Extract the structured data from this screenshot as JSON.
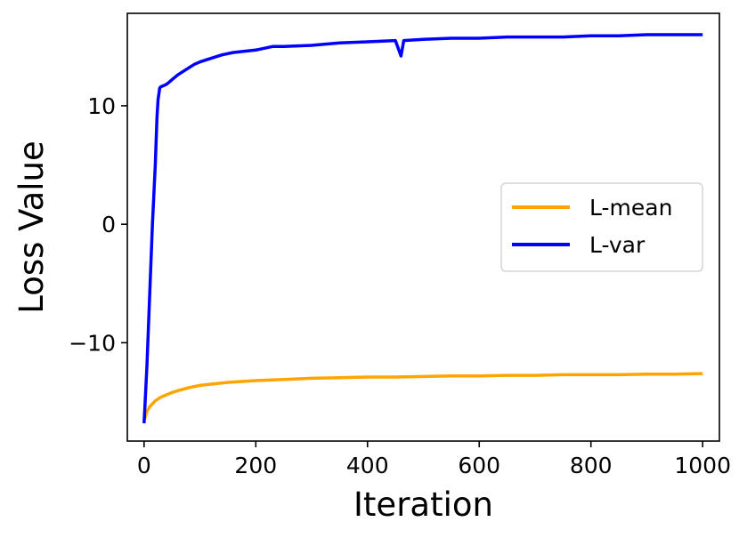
{
  "chart_data": {
    "type": "line",
    "xlabel": "Iteration",
    "ylabel": "Loss Value",
    "xlim": [
      -30,
      1030
    ],
    "ylim": [
      -18.3,
      17.8
    ],
    "xticks": [
      0,
      200,
      400,
      600,
      800,
      1000
    ],
    "yticks": [
      -10,
      0,
      10
    ],
    "xtick_labels": [
      "0",
      "200",
      "400",
      "600",
      "800",
      "1000"
    ],
    "ytick_labels": [
      "−10",
      "0",
      "10"
    ],
    "grid": false,
    "legend_position": "center-right",
    "series": [
      {
        "name": "L-mean",
        "color": "#FFA500",
        "x": [
          0,
          5,
          10,
          20,
          30,
          40,
          50,
          60,
          80,
          100,
          120,
          150,
          200,
          250,
          300,
          350,
          400,
          450,
          500,
          550,
          600,
          650,
          700,
          750,
          800,
          850,
          900,
          950,
          1000
        ],
        "y": [
          -16.6,
          -15.8,
          -15.4,
          -14.9,
          -14.6,
          -14.4,
          -14.2,
          -14.05,
          -13.8,
          -13.6,
          -13.5,
          -13.35,
          -13.2,
          -13.1,
          -13.0,
          -12.95,
          -12.9,
          -12.9,
          -12.85,
          -12.8,
          -12.8,
          -12.75,
          -12.75,
          -12.7,
          -12.7,
          -12.7,
          -12.65,
          -12.65,
          -12.6
        ]
      },
      {
        "name": "L-var",
        "color": "#0000FF",
        "x": [
          0,
          5,
          10,
          15,
          20,
          23,
          25,
          28,
          30,
          35,
          40,
          45,
          50,
          60,
          70,
          80,
          90,
          100,
          120,
          140,
          160,
          180,
          200,
          230,
          250,
          300,
          350,
          400,
          450,
          460,
          465,
          500,
          550,
          600,
          650,
          700,
          750,
          800,
          850,
          900,
          950,
          1000
        ],
        "y": [
          -16.8,
          -12.0,
          -6.0,
          0.0,
          5.0,
          9.0,
          10.5,
          11.5,
          11.6,
          11.7,
          11.8,
          12.0,
          12.2,
          12.6,
          12.9,
          13.2,
          13.5,
          13.7,
          14.0,
          14.3,
          14.5,
          14.6,
          14.7,
          15.0,
          15.0,
          15.1,
          15.3,
          15.4,
          15.5,
          14.2,
          15.5,
          15.6,
          15.7,
          15.7,
          15.8,
          15.8,
          15.8,
          15.9,
          15.9,
          16.0,
          16.0,
          16.0
        ]
      }
    ]
  }
}
